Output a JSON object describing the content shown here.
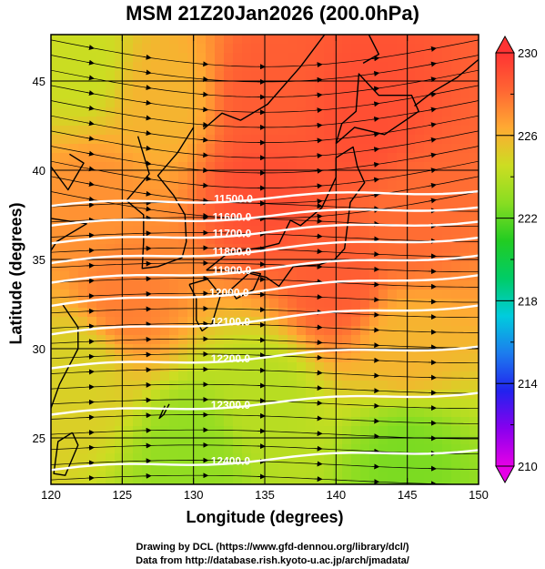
{
  "title": "MSM 21Z20Jan2026 (200.0hPa)",
  "credits": [
    "Drawing by DCL (https://www.gfd-dennou.org/library/dcl/)",
    "Data from http://database.rish.kyoto-u.ac.jp/arch/jmadata/"
  ],
  "chart_data": {
    "type": "heatmap",
    "xlabel": "Longitude (degrees)",
    "ylabel": "Latitude  (degrees)",
    "xlim": [
      120,
      150
    ],
    "ylim": [
      22.4,
      47.6
    ],
    "xticks": [
      120,
      125,
      130,
      135,
      140,
      145,
      150
    ],
    "yticks": [
      25,
      30,
      35,
      40,
      45
    ],
    "colorbar": {
      "range": [
        210,
        230
      ],
      "tick_labels": [
        230,
        226,
        222,
        218,
        214,
        210
      ],
      "colors": [
        "#e600e6",
        "#8800ee",
        "#2222ee",
        "#1c7cee",
        "#00ccdd",
        "#00cc66",
        "#22cc22",
        "#88dd22",
        "#ccdd22",
        "#ffaa33",
        "#ff6633",
        "#ff3333"
      ]
    },
    "field": "temperature",
    "temperature_samples": [
      {
        "lon": 122,
        "lat": 46,
        "value": 224.5
      },
      {
        "lon": 128,
        "lat": 44,
        "value": 226
      },
      {
        "lon": 135,
        "lat": 44,
        "value": 228.5
      },
      {
        "lon": 142,
        "lat": 43,
        "value": 229
      },
      {
        "lon": 135,
        "lat": 39,
        "value": 229
      },
      {
        "lon": 123,
        "lat": 38,
        "value": 227
      },
      {
        "lon": 145,
        "lat": 37,
        "value": 228
      },
      {
        "lon": 140,
        "lat": 34,
        "value": 228.5
      },
      {
        "lon": 125,
        "lat": 33,
        "value": 227.5
      },
      {
        "lon": 145,
        "lat": 30,
        "value": 226
      },
      {
        "lon": 122,
        "lat": 29,
        "value": 225
      },
      {
        "lon": 135,
        "lat": 27,
        "value": 224
      },
      {
        "lon": 130,
        "lat": 24,
        "value": 223
      },
      {
        "lon": 145,
        "lat": 24,
        "value": 222.5
      }
    ],
    "contours": [
      {
        "label": "11500.0",
        "lat_west": 38.0,
        "lat_east": 38.9,
        "label_lon": 132.8
      },
      {
        "label": "11600.0",
        "lat_west": 36.9,
        "lat_east": 38.0,
        "label_lon": 132.7
      },
      {
        "label": "11700.0",
        "lat_west": 35.9,
        "lat_east": 37.2,
        "label_lon": 132.7
      },
      {
        "label": "11800.0",
        "lat_west": 34.8,
        "lat_east": 36.3,
        "label_lon": 132.7
      },
      {
        "label": "11900.0",
        "lat_west": 33.7,
        "lat_east": 35.3,
        "label_lon": 132.7
      },
      {
        "label": "12000.0",
        "lat_west": 32.4,
        "lat_east": 34.2,
        "label_lon": 132.5
      },
      {
        "label": "12100.0",
        "lat_west": 30.8,
        "lat_east": 32.5,
        "label_lon": 132.6
      },
      {
        "label": "12200.0",
        "lat_west": 28.9,
        "lat_east": 30.2,
        "label_lon": 132.6
      },
      {
        "label": "12300.0",
        "lat_west": 26.3,
        "lat_east": 27.6,
        "label_lon": 132.6
      },
      {
        "label": "12400.0",
        "lat_west": 23.2,
        "lat_east": 24.4,
        "label_lon": 132.6
      }
    ],
    "wind": "westerly streamlines",
    "grid": true
  }
}
